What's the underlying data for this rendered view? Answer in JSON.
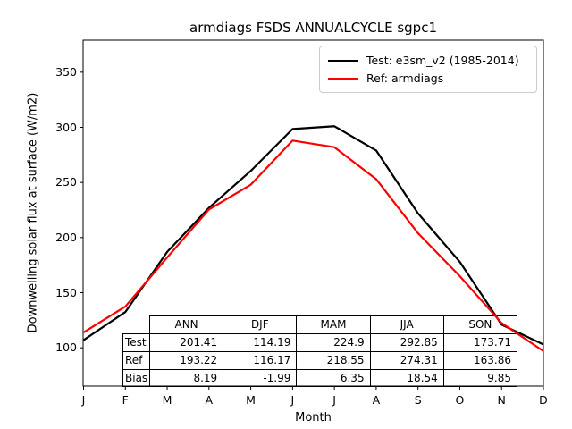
{
  "title": "armdiags FSDS ANNUALCYCLE sgpc1",
  "chart_data": {
    "type": "line",
    "x": [
      "J",
      "F",
      "M",
      "A",
      "M",
      "J",
      "J",
      "A",
      "S",
      "O",
      "N",
      "D"
    ],
    "xlabel": "Month",
    "ylabel": "Downwelling solar flux at surface (W/m2)",
    "y_ticks": [
      100,
      150,
      200,
      250,
      300,
      350
    ],
    "ylim": [
      65,
      379
    ],
    "grid": false,
    "legend_position": "upper right",
    "series": [
      {
        "name": "Test: e3sm_v2 (1985-2014)",
        "color": "#000000",
        "values": [
          107,
          132.5,
          187,
          227,
          260.5,
          298.5,
          301,
          279,
          222,
          178,
          121,
          103
        ]
      },
      {
        "name": "Ref: armdiags",
        "color": "#ff0000",
        "values": [
          114,
          137.5,
          182,
          225.5,
          248,
          288,
          282,
          253,
          204,
          165,
          122.5,
          97
        ]
      }
    ],
    "stats_table": {
      "columns": [
        "ANN",
        "DJF",
        "MAM",
        "JJA",
        "SON"
      ],
      "row_headers": [
        "Test",
        "Ref",
        "Bias"
      ],
      "rows": [
        [
          "201.41",
          "114.19",
          "224.9",
          "292.85",
          "173.71"
        ],
        [
          "193.22",
          "116.17",
          "218.55",
          "274.31",
          "163.86"
        ],
        [
          "8.19",
          "-1.99",
          "6.35",
          "18.54",
          "9.85"
        ]
      ]
    }
  }
}
